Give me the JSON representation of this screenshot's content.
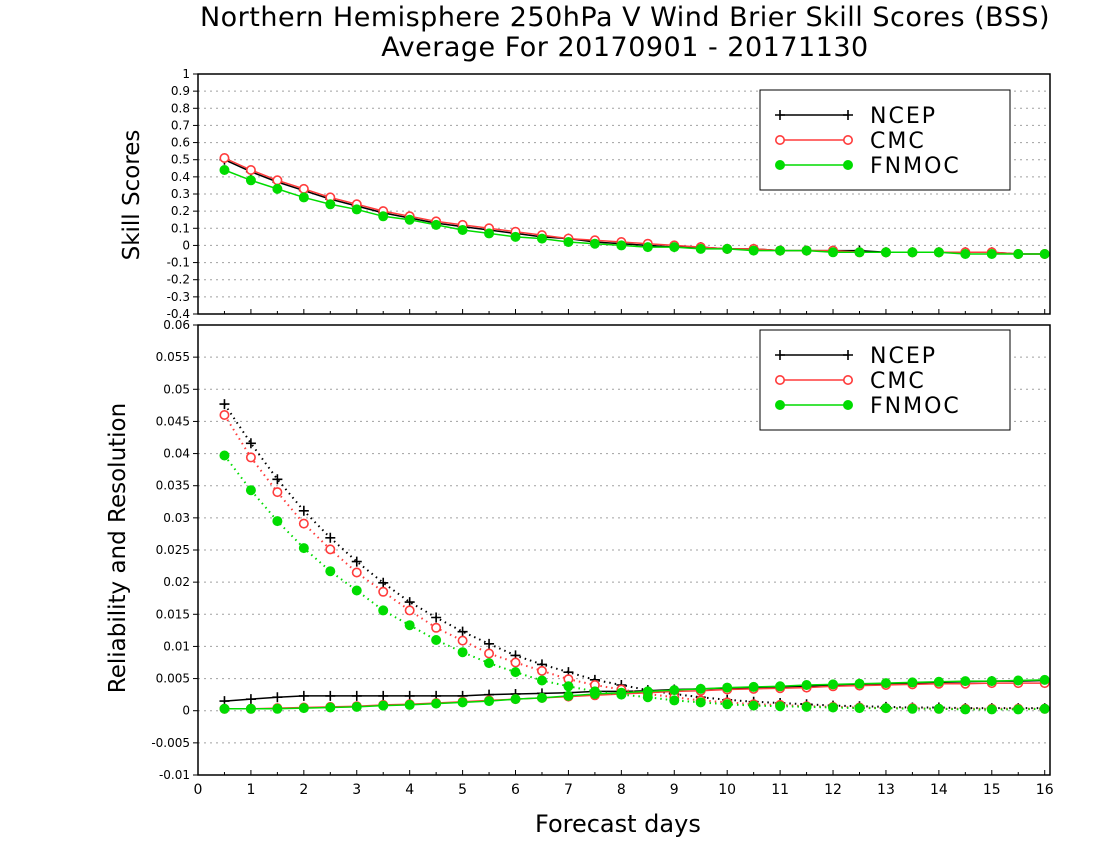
{
  "colors": {
    "ncep": "#000000",
    "cmc": "#ff3c3c",
    "fnmoc": "#00dc00",
    "grid": "#a0a0a0"
  },
  "chart_data": [
    {
      "type": "line",
      "title": "Northern Hemisphere 250hPa V Wind Brier Skill Scores (BSS)",
      "subtitle": "Average For 20170901 - 20171130",
      "xlabel": "",
      "ylabel": "Skill Scores",
      "xlim": [
        0,
        16.1
      ],
      "ylim": [
        -0.4,
        1
      ],
      "yticks": [
        "-0.4",
        "-0.3",
        "-0.2",
        "-0.1",
        "0",
        "0.1",
        "0.2",
        "0.3",
        "0.4",
        "0.5",
        "0.6",
        "0.7",
        "0.8",
        "0.9",
        "1"
      ],
      "grid": true,
      "legend_position": "top-right",
      "x": [
        0.5,
        1,
        1.5,
        2,
        2.5,
        3,
        3.5,
        4,
        4.5,
        5,
        5.5,
        6,
        6.5,
        7,
        7.5,
        8,
        8.5,
        9,
        9.5,
        10,
        10.5,
        11,
        11.5,
        12,
        12.5,
        13,
        13.5,
        14,
        14.5,
        15,
        15.5,
        16
      ],
      "series": [
        {
          "name": "NCEP",
          "marker": "plus",
          "line": "solid",
          "values": [
            0.5,
            0.43,
            0.37,
            0.32,
            0.27,
            0.23,
            0.19,
            0.16,
            0.13,
            0.11,
            0.09,
            0.07,
            0.05,
            0.04,
            0.02,
            0.01,
            0.0,
            -0.01,
            -0.01,
            -0.02,
            -0.02,
            -0.03,
            -0.03,
            -0.03,
            -0.03,
            -0.04,
            -0.04,
            -0.04,
            -0.04,
            -0.04,
            -0.05,
            -0.05
          ]
        },
        {
          "name": "CMC",
          "marker": "open-circle",
          "line": "solid",
          "values": [
            0.51,
            0.44,
            0.38,
            0.33,
            0.28,
            0.24,
            0.2,
            0.17,
            0.14,
            0.12,
            0.1,
            0.08,
            0.06,
            0.04,
            0.03,
            0.02,
            0.01,
            0.0,
            -0.01,
            -0.02,
            -0.02,
            -0.03,
            -0.03,
            -0.03,
            -0.04,
            -0.04,
            -0.04,
            -0.04,
            -0.04,
            -0.04,
            -0.05,
            -0.05
          ]
        },
        {
          "name": "FNMOC",
          "marker": "filled-circle",
          "line": "solid",
          "values": [
            0.44,
            0.38,
            0.33,
            0.28,
            0.24,
            0.21,
            0.17,
            0.15,
            0.12,
            0.09,
            0.07,
            0.05,
            0.04,
            0.02,
            0.01,
            0.0,
            -0.01,
            -0.01,
            -0.02,
            -0.02,
            -0.03,
            -0.03,
            -0.03,
            -0.04,
            -0.04,
            -0.04,
            -0.04,
            -0.04,
            -0.05,
            -0.05,
            -0.05,
            -0.05
          ]
        }
      ]
    },
    {
      "type": "line",
      "xlabel": "Forecast days",
      "ylabel": "Reliability and Resolution",
      "xlim": [
        0,
        16.1
      ],
      "ylim": [
        -0.01,
        0.06
      ],
      "xticks": [
        "0",
        "1",
        "2",
        "3",
        "4",
        "5",
        "6",
        "7",
        "8",
        "9",
        "10",
        "11",
        "12",
        "13",
        "14",
        "15",
        "16"
      ],
      "yticks": [
        "-0.01",
        "-0.005",
        "0",
        "0.005",
        "0.01",
        "0.015",
        "0.02",
        "0.025",
        "0.03",
        "0.035",
        "0.04",
        "0.045",
        "0.05",
        "0.055",
        "0.06"
      ],
      "grid": true,
      "legend_position": "top-right",
      "x": [
        0.5,
        1,
        1.5,
        2,
        2.5,
        3,
        3.5,
        4,
        4.5,
        5,
        5.5,
        6,
        6.5,
        7,
        7.5,
        8,
        8.5,
        9,
        9.5,
        10,
        10.5,
        11,
        11.5,
        12,
        12.5,
        13,
        13.5,
        14,
        14.5,
        15,
        15.5,
        16
      ],
      "series": [
        {
          "name": "NCEP",
          "marker": "plus",
          "line": "solid",
          "values": [
            0.0015,
            0.0018,
            0.0021,
            0.0023,
            0.0023,
            0.0023,
            0.0023,
            0.0023,
            0.0023,
            0.0023,
            0.0025,
            0.0026,
            0.0027,
            0.0028,
            0.003,
            0.003,
            0.0031,
            0.0033,
            0.0034,
            0.0035,
            0.0036,
            0.0037,
            0.0038,
            0.004,
            0.0041,
            0.0042,
            0.0043,
            0.0044,
            0.0045,
            0.0046,
            0.0046,
            0.0047
          ]
        },
        {
          "name": "NCEP",
          "marker": "plus",
          "line": "dotted",
          "values": [
            0.0477,
            0.0416,
            0.036,
            0.0311,
            0.0269,
            0.0232,
            0.0199,
            0.0169,
            0.0145,
            0.0123,
            0.0104,
            0.0086,
            0.0072,
            0.006,
            0.0048,
            0.004,
            0.0032,
            0.0026,
            0.0021,
            0.0017,
            0.0014,
            0.0012,
            0.001,
            0.0008,
            0.0007,
            0.0006,
            0.0005,
            0.0005,
            0.0004,
            0.0004,
            0.0004,
            0.0004
          ]
        },
        {
          "name": "CMC",
          "marker": "open-circle",
          "line": "solid",
          "values": [
            0.0003,
            0.0003,
            0.0004,
            0.0005,
            0.0006,
            0.0007,
            0.0009,
            0.001,
            0.0012,
            0.0014,
            0.0016,
            0.0018,
            0.002,
            0.0022,
            0.0024,
            0.0026,
            0.0028,
            0.003,
            0.0031,
            0.0033,
            0.0034,
            0.0035,
            0.0036,
            0.0038,
            0.0039,
            0.004,
            0.0041,
            0.0042,
            0.0042,
            0.0043,
            0.0043,
            0.0043
          ]
        },
        {
          "name": "CMC",
          "marker": "open-circle",
          "line": "dotted",
          "values": [
            0.046,
            0.0394,
            0.034,
            0.0291,
            0.0251,
            0.0215,
            0.0185,
            0.0156,
            0.0129,
            0.0109,
            0.0089,
            0.0075,
            0.0062,
            0.0049,
            0.004,
            0.0033,
            0.0026,
            0.0021,
            0.0016,
            0.0013,
            0.001,
            0.0009,
            0.0007,
            0.0006,
            0.0005,
            0.0004,
            0.0004,
            0.0003,
            0.0003,
            0.0003,
            0.0003,
            0.0003
          ]
        },
        {
          "name": "FNMOC",
          "marker": "filled-circle",
          "line": "solid",
          "values": [
            0.0003,
            0.0003,
            0.0003,
            0.0004,
            0.0005,
            0.0006,
            0.0008,
            0.0009,
            0.0011,
            0.0013,
            0.0015,
            0.0018,
            0.002,
            0.0023,
            0.0026,
            0.0028,
            0.003,
            0.0032,
            0.0034,
            0.0036,
            0.0037,
            0.0038,
            0.004,
            0.0041,
            0.0042,
            0.0043,
            0.0044,
            0.0045,
            0.0046,
            0.0046,
            0.0047,
            0.0048
          ]
        },
        {
          "name": "FNMOC",
          "marker": "filled-circle",
          "line": "dotted",
          "values": [
            0.0397,
            0.0343,
            0.0295,
            0.0253,
            0.0217,
            0.0187,
            0.0156,
            0.0133,
            0.011,
            0.0091,
            0.0074,
            0.006,
            0.0047,
            0.0038,
            0.003,
            0.0025,
            0.0021,
            0.0016,
            0.0013,
            0.001,
            0.0008,
            0.0007,
            0.0006,
            0.0005,
            0.0004,
            0.0004,
            0.0003,
            0.0003,
            0.0002,
            0.0002,
            0.0002,
            0.0003
          ]
        }
      ]
    }
  ]
}
